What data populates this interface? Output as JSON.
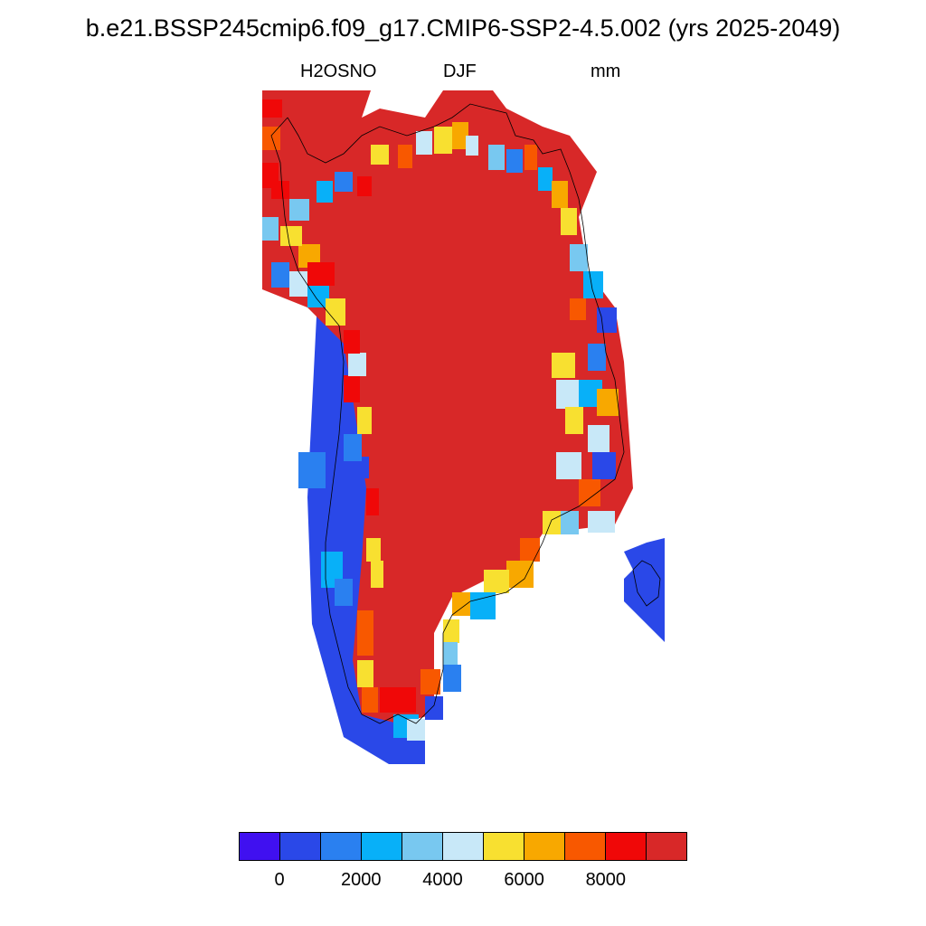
{
  "title": "b.e21.BSSP245cmip6.f09_g17.CMIP6-SSP2-4.5.002 (yrs 2025-2049)",
  "variable": "H2OSNO",
  "season": "DJF",
  "units": "mm",
  "colorbar": {
    "colors": [
      "#4010f0",
      "#2a48e8",
      "#2a80f0",
      "#08b0f8",
      "#78c8f0",
      "#c8e8f8",
      "#f8e030",
      "#f8a800",
      "#f85800",
      "#f00808",
      "#d82828"
    ],
    "ticks": [
      "0",
      "2000",
      "4000",
      "6000",
      "8000"
    ]
  },
  "map_colors": {
    "coast": "#000000"
  }
}
